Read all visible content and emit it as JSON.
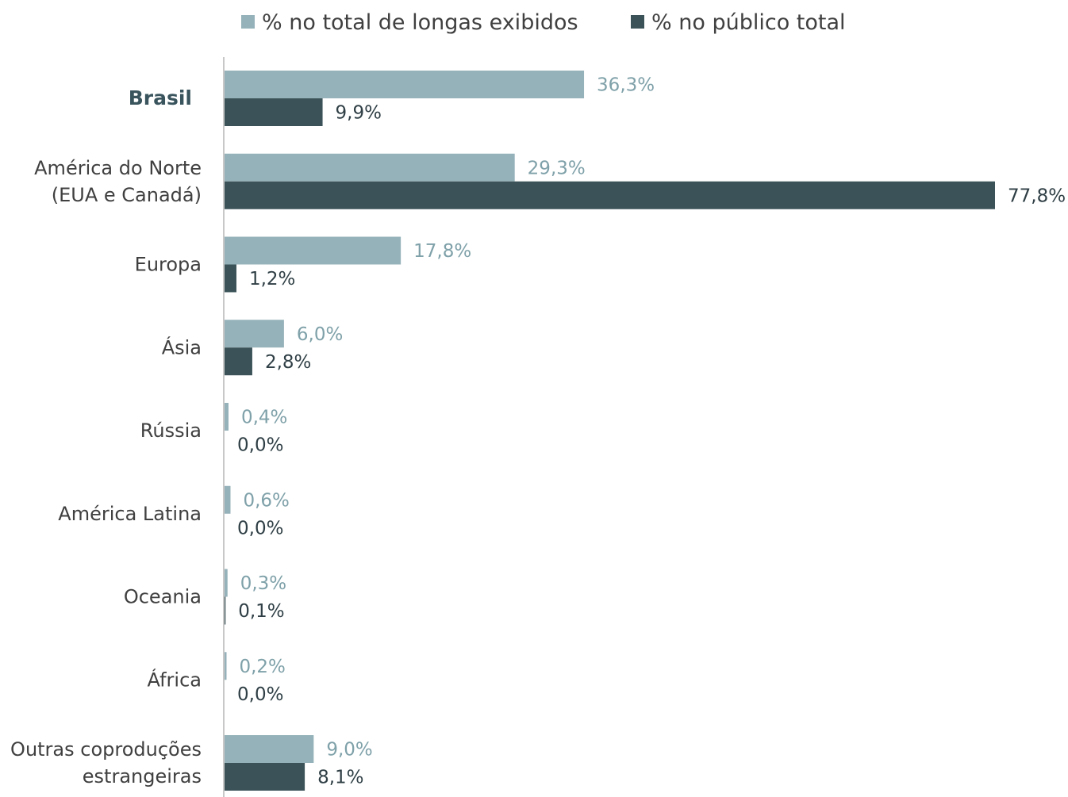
{
  "chart_data": {
    "type": "bar",
    "orientation": "horizontal",
    "categories": [
      [
        "Brasil"
      ],
      [
        "América do Norte",
        "(EUA e Canadá)"
      ],
      [
        "Europa"
      ],
      [
        "Ásia"
      ],
      [
        "Rússia"
      ],
      [
        "América Latina"
      ],
      [
        "Oceania"
      ],
      [
        "África"
      ],
      [
        "Outras coproduções",
        "estrangeiras"
      ]
    ],
    "highlight_category_index": 0,
    "series": [
      {
        "name": "% no total de longas exibidos",
        "color": "#95b2ba",
        "values": [
          36.3,
          29.3,
          17.8,
          6.0,
          0.4,
          0.6,
          0.3,
          0.2,
          9.0
        ],
        "labels": [
          "36,3%",
          "29,3%",
          "17,8%",
          "6,0%",
          "0,4%",
          "0,6%",
          "0,3%",
          "0,2%",
          "9,0%"
        ]
      },
      {
        "name": "% no público total",
        "color": "#3b5358",
        "values": [
          9.9,
          77.8,
          1.2,
          2.8,
          0.0,
          0.0,
          0.1,
          0.0,
          8.1
        ],
        "labels": [
          "9,9%",
          "77,8%",
          "1,2%",
          "2,8%",
          "0,0%",
          "0,0%",
          "0,1%",
          "0,0%",
          "8,1%"
        ]
      }
    ],
    "xlim": [
      0,
      80
    ],
    "legend_position": "top",
    "grid": false
  }
}
